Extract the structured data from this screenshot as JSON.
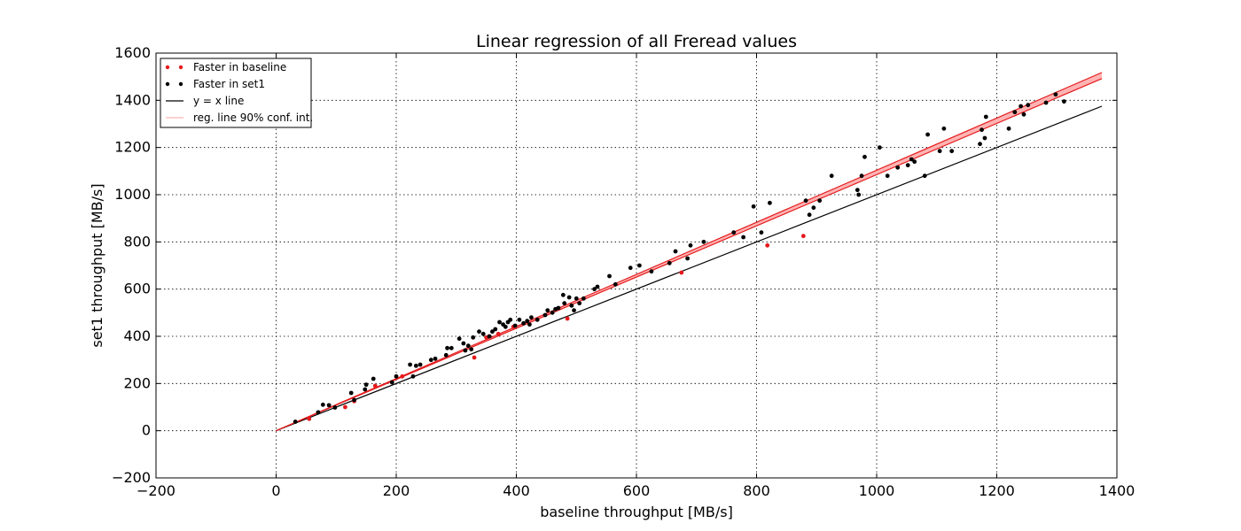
{
  "chart_data": {
    "type": "scatter",
    "title": "Linear regression of all Freread values",
    "xlabel": "baseline throughput [MB/s]",
    "ylabel": "set1 throughput [MB/s]",
    "xlim": [
      -200,
      1400
    ],
    "ylim": [
      -200,
      1600
    ],
    "x_ticks": [
      -200,
      0,
      200,
      400,
      600,
      800,
      1000,
      1200,
      1400
    ],
    "y_ticks": [
      -200,
      0,
      200,
      400,
      600,
      800,
      1000,
      1200,
      1400,
      1600
    ],
    "x_tick_labels": [
      "−200",
      "0",
      "200",
      "400",
      "600",
      "800",
      "1000",
      "1200",
      "1400"
    ],
    "y_tick_labels": [
      "−200",
      "0",
      "200",
      "400",
      "600",
      "800",
      "1000",
      "1200",
      "1400",
      "1600"
    ],
    "grid": true,
    "legend_position": "top-left",
    "series": [
      {
        "name": "Faster in baseline",
        "color": "#e41a1c",
        "points": [
          [
            55,
            50
          ],
          [
            115,
            100
          ],
          [
            130,
            125
          ],
          [
            165,
            190
          ],
          [
            210,
            230
          ],
          [
            330,
            310
          ],
          [
            350,
            395
          ],
          [
            370,
            410
          ],
          [
            395,
            440
          ],
          [
            485,
            475
          ],
          [
            675,
            670
          ],
          [
            818,
            785
          ],
          [
            878,
            825
          ]
        ]
      },
      {
        "name": "Faster in set1",
        "color": "#000000",
        "points": [
          [
            32,
            38
          ],
          [
            70,
            78
          ],
          [
            78,
            110
          ],
          [
            88,
            108
          ],
          [
            98,
            98
          ],
          [
            125,
            160
          ],
          [
            130,
            130
          ],
          [
            148,
            175
          ],
          [
            150,
            195
          ],
          [
            162,
            220
          ],
          [
            193,
            205
          ],
          [
            200,
            230
          ],
          [
            223,
            280
          ],
          [
            228,
            230
          ],
          [
            233,
            275
          ],
          [
            240,
            280
          ],
          [
            258,
            300
          ],
          [
            265,
            305
          ],
          [
            283,
            320
          ],
          [
            285,
            350
          ],
          [
            292,
            350
          ],
          [
            305,
            390
          ],
          [
            312,
            370
          ],
          [
            315,
            340
          ],
          [
            320,
            360
          ],
          [
            325,
            345
          ],
          [
            328,
            395
          ],
          [
            338,
            420
          ],
          [
            345,
            410
          ],
          [
            355,
            400
          ],
          [
            360,
            420
          ],
          [
            365,
            430
          ],
          [
            372,
            460
          ],
          [
            378,
            450
          ],
          [
            382,
            440
          ],
          [
            386,
            460
          ],
          [
            390,
            470
          ],
          [
            398,
            445
          ],
          [
            405,
            470
          ],
          [
            412,
            455
          ],
          [
            418,
            465
          ],
          [
            422,
            450
          ],
          [
            425,
            480
          ],
          [
            435,
            470
          ],
          [
            448,
            490
          ],
          [
            452,
            510
          ],
          [
            460,
            500
          ],
          [
            465,
            515
          ],
          [
            470,
            520
          ],
          [
            478,
            575
          ],
          [
            480,
            540
          ],
          [
            488,
            565
          ],
          [
            492,
            530
          ],
          [
            496,
            510
          ],
          [
            500,
            560
          ],
          [
            505,
            540
          ],
          [
            512,
            560
          ],
          [
            530,
            600
          ],
          [
            535,
            610
          ],
          [
            555,
            655
          ],
          [
            565,
            620
          ],
          [
            590,
            690
          ],
          [
            605,
            700
          ],
          [
            625,
            675
          ],
          [
            655,
            710
          ],
          [
            665,
            760
          ],
          [
            685,
            730
          ],
          [
            690,
            785
          ],
          [
            712,
            800
          ],
          [
            762,
            840
          ],
          [
            778,
            820
          ],
          [
            795,
            950
          ],
          [
            808,
            840
          ],
          [
            822,
            965
          ],
          [
            882,
            975
          ],
          [
            888,
            915
          ],
          [
            895,
            945
          ],
          [
            905,
            975
          ],
          [
            925,
            1080
          ],
          [
            968,
            1020
          ],
          [
            970,
            1000
          ],
          [
            975,
            1080
          ],
          [
            980,
            1160
          ],
          [
            1005,
            1200
          ],
          [
            1018,
            1080
          ],
          [
            1035,
            1115
          ],
          [
            1052,
            1125
          ],
          [
            1058,
            1150
          ],
          [
            1063,
            1140
          ],
          [
            1080,
            1080
          ],
          [
            1085,
            1255
          ],
          [
            1105,
            1185
          ],
          [
            1112,
            1280
          ],
          [
            1125,
            1185
          ],
          [
            1172,
            1215
          ],
          [
            1175,
            1275
          ],
          [
            1180,
            1240
          ],
          [
            1182,
            1330
          ],
          [
            1220,
            1280
          ],
          [
            1230,
            1350
          ],
          [
            1240,
            1375
          ],
          [
            1245,
            1340
          ],
          [
            1252,
            1380
          ],
          [
            1282,
            1390
          ],
          [
            1298,
            1425
          ],
          [
            1312,
            1395
          ]
        ]
      }
    ],
    "lines": [
      {
        "name": "y = x line",
        "color": "#000000",
        "from": [
          0,
          0
        ],
        "to": [
          1375,
          1375
        ]
      },
      {
        "name": "reg. line 90% conf. int.",
        "color": "#e41a1c",
        "fill": "#ffb3b3",
        "upper": {
          "from": [
            0,
            0
          ],
          "to": [
            1375,
            1518
          ]
        },
        "lower": {
          "from": [
            0,
            0
          ],
          "to": [
            1375,
            1492
          ]
        }
      }
    ],
    "legend": [
      {
        "label": "Faster in baseline",
        "kind": "dots",
        "color": "#e41a1c"
      },
      {
        "label": "Faster in set1",
        "kind": "dots",
        "color": "#000000"
      },
      {
        "label": "y = x line",
        "kind": "line",
        "color": "#000000"
      },
      {
        "label": "reg. line 90% conf. int.",
        "kind": "line",
        "color": "#ffb3b3"
      }
    ]
  }
}
